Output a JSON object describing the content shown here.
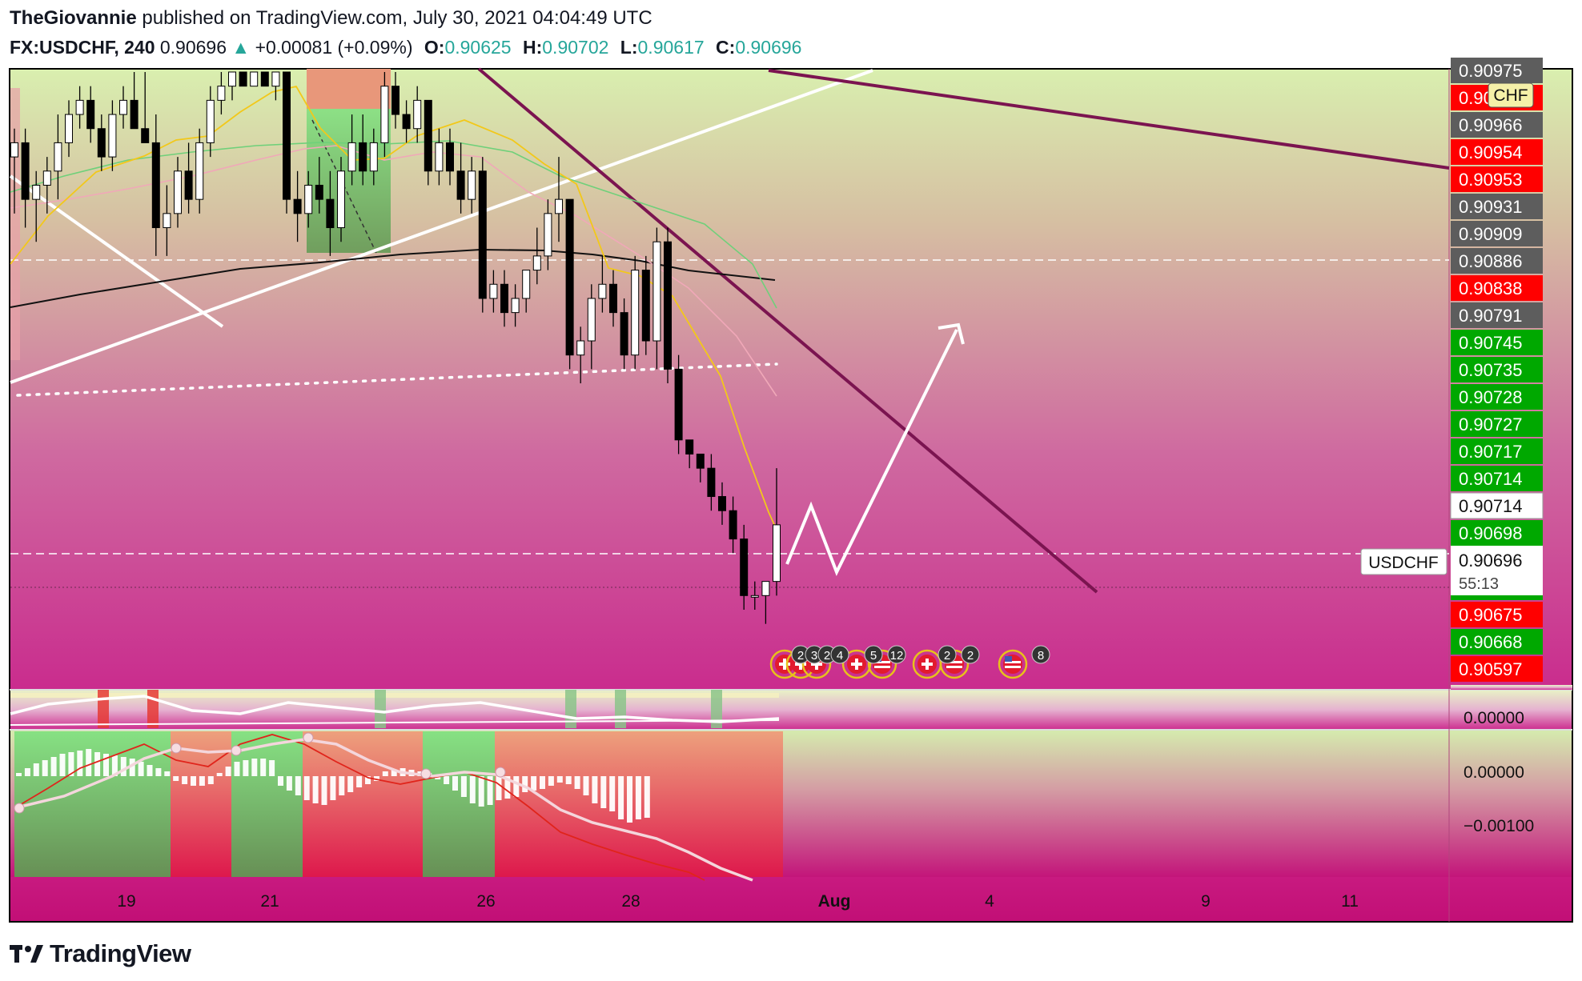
{
  "header": {
    "author": "TheGiovannie",
    "published_text": "published on TradingView.com, July 30, 2021 04:04:49 UTC",
    "symbol": "FX:USDCHF, 240",
    "last": "0.90696",
    "change": "+0.00081 (+0.09%)",
    "ohlc": [
      {
        "label": "O:",
        "value": "0.90625"
      },
      {
        "label": "H:",
        "value": "0.90702"
      },
      {
        "label": "L:",
        "value": "0.90617"
      },
      {
        "label": "C:",
        "value": "0.90696"
      }
    ]
  },
  "footer": {
    "brand": "TradingView"
  },
  "colors": {
    "bull_candle": "#ffffff",
    "bear_candle": "#000000",
    "trendline": "#7b1450",
    "price_green": "#00a800",
    "price_red": "#ff0000",
    "price_gray": "#5d5d5d"
  },
  "chart_data": {
    "type": "candlestick",
    "symbol": "USDCHF",
    "timeframe": "240",
    "ylim": [
      0.90593,
      0.9098
    ],
    "x_ticks": [
      "19",
      "21",
      "26",
      "28",
      "Aug",
      "4",
      "9",
      "11"
    ],
    "y_price_labels": [
      {
        "value": "0.90975",
        "color": "gray"
      },
      {
        "value": "0.90970",
        "color": "red"
      },
      {
        "value": "0.90966",
        "color": "gray"
      },
      {
        "value": "0.90954",
        "color": "red"
      },
      {
        "value": "0.90953",
        "color": "red"
      },
      {
        "value": "0.90931",
        "color": "gray"
      },
      {
        "value": "0.90909",
        "color": "gray"
      },
      {
        "value": "0.90886",
        "color": "gray"
      },
      {
        "value": "0.90838",
        "color": "red"
      },
      {
        "value": "0.90791",
        "color": "gray"
      },
      {
        "value": "0.90745",
        "color": "green"
      },
      {
        "value": "0.90735",
        "color": "green"
      },
      {
        "value": "0.90728",
        "color": "green"
      },
      {
        "value": "0.90727",
        "color": "green"
      },
      {
        "value": "0.90717",
        "color": "green"
      },
      {
        "value": "0.90714",
        "color": "green"
      },
      {
        "value": "0.90714",
        "color": "white"
      },
      {
        "value": "0.90698",
        "color": "green"
      },
      {
        "value": "0.90696",
        "color": "white"
      },
      {
        "value": "0.90695",
        "color": "green"
      },
      {
        "value": "0.90675",
        "color": "red"
      },
      {
        "value": "0.90668",
        "color": "green"
      },
      {
        "value": "0.90597",
        "color": "red"
      }
    ],
    "last_price_label": "USDCHF",
    "last_price": "0.90696",
    "countdown": "55:13",
    "currency_badge": "CHF",
    "candles": [
      [
        0.9092,
        0.9094,
        0.9088,
        0.9093
      ],
      [
        0.9093,
        0.9094,
        0.9087,
        0.9089
      ],
      [
        0.9089,
        0.9091,
        0.9086,
        0.909
      ],
      [
        0.909,
        0.9092,
        0.9088,
        0.9091
      ],
      [
        0.9091,
        0.9095,
        0.9089,
        0.9093
      ],
      [
        0.9093,
        0.9096,
        0.9092,
        0.9095
      ],
      [
        0.9095,
        0.9097,
        0.9094,
        0.9096
      ],
      [
        0.9096,
        0.9097,
        0.9093,
        0.9094
      ],
      [
        0.9094,
        0.9095,
        0.9091,
        0.9092
      ],
      [
        0.9092,
        0.9096,
        0.9091,
        0.9095
      ],
      [
        0.9095,
        0.9097,
        0.9094,
        0.9096
      ],
      [
        0.9096,
        0.9098,
        0.9094,
        0.9094
      ],
      [
        0.9094,
        0.9098,
        0.9093,
        0.9093
      ],
      [
        0.9093,
        0.9095,
        0.9085,
        0.9087
      ],
      [
        0.9087,
        0.909,
        0.9085,
        0.9088
      ],
      [
        0.9088,
        0.9092,
        0.9087,
        0.9091
      ],
      [
        0.9091,
        0.9093,
        0.9088,
        0.9089
      ],
      [
        0.9089,
        0.9094,
        0.9088,
        0.9093
      ],
      [
        0.9093,
        0.9097,
        0.9092,
        0.9096
      ],
      [
        0.9096,
        0.9098,
        0.9095,
        0.9097
      ],
      [
        0.9097,
        0.9098,
        0.9096,
        0.9098
      ],
      [
        0.9098,
        0.9098,
        0.9097,
        0.9097
      ],
      [
        0.9097,
        0.9098,
        0.9097,
        0.9098
      ],
      [
        0.9098,
        0.9098,
        0.9097,
        0.9097
      ],
      [
        0.9097,
        0.9098,
        0.9096,
        0.9098
      ],
      [
        0.9098,
        0.9098,
        0.9088,
        0.9089
      ],
      [
        0.9089,
        0.9091,
        0.9086,
        0.9088
      ],
      [
        0.9088,
        0.9091,
        0.9087,
        0.909
      ],
      [
        0.909,
        0.9092,
        0.9088,
        0.9089
      ],
      [
        0.9089,
        0.9091,
        0.9085,
        0.9087
      ],
      [
        0.9087,
        0.9092,
        0.9086,
        0.9091
      ],
      [
        0.9091,
        0.9095,
        0.909,
        0.9093
      ],
      [
        0.9093,
        0.9095,
        0.909,
        0.9091
      ],
      [
        0.9091,
        0.9094,
        0.909,
        0.9093
      ],
      [
        0.9093,
        0.9098,
        0.9092,
        0.9097
      ],
      [
        0.9097,
        0.9098,
        0.9094,
        0.9095
      ],
      [
        0.9095,
        0.9096,
        0.9093,
        0.9094
      ],
      [
        0.9094,
        0.9097,
        0.9093,
        0.9096
      ],
      [
        0.9096,
        0.9096,
        0.909,
        0.9091
      ],
      [
        0.9091,
        0.9094,
        0.909,
        0.9093
      ],
      [
        0.9093,
        0.9094,
        0.909,
        0.9091
      ],
      [
        0.9091,
        0.9093,
        0.9088,
        0.9089
      ],
      [
        0.9089,
        0.9092,
        0.9088,
        0.9091
      ],
      [
        0.9091,
        0.9092,
        0.9081,
        0.9082
      ],
      [
        0.9082,
        0.9084,
        0.9081,
        0.9083
      ],
      [
        0.9083,
        0.9084,
        0.908,
        0.9081
      ],
      [
        0.9081,
        0.9083,
        0.908,
        0.9082
      ],
      [
        0.9082,
        0.9084,
        0.9081,
        0.9084
      ],
      [
        0.9084,
        0.9087,
        0.9083,
        0.9085
      ],
      [
        0.9085,
        0.9089,
        0.9084,
        0.9088
      ],
      [
        0.9088,
        0.9092,
        0.9086,
        0.9089
      ],
      [
        0.9089,
        0.9089,
        0.9077,
        0.9078
      ],
      [
        0.9078,
        0.908,
        0.9076,
        0.9079
      ],
      [
        0.9079,
        0.9083,
        0.9077,
        0.9082
      ],
      [
        0.9082,
        0.9085,
        0.9081,
        0.9083
      ],
      [
        0.9083,
        0.9084,
        0.908,
        0.9081
      ],
      [
        0.9081,
        0.9082,
        0.9077,
        0.9078
      ],
      [
        0.9078,
        0.9085,
        0.9077,
        0.9084
      ],
      [
        0.9084,
        0.9085,
        0.9078,
        0.9079
      ],
      [
        0.9079,
        0.9087,
        0.9077,
        0.9086
      ],
      [
        0.9086,
        0.9087,
        0.9076,
        0.9077
      ],
      [
        0.9077,
        0.9078,
        0.9071,
        0.9072
      ],
      [
        0.9072,
        0.9072,
        0.907,
        0.9071
      ],
      [
        0.9071,
        0.9071,
        0.9069,
        0.907
      ],
      [
        0.907,
        0.9071,
        0.9067,
        0.9068
      ],
      [
        0.9068,
        0.9069,
        0.9066,
        0.9067
      ],
      [
        0.9067,
        0.9068,
        0.9064,
        0.9065
      ],
      [
        0.9065,
        0.9066,
        0.906,
        0.9061
      ],
      [
        0.9061,
        0.9062,
        0.906,
        0.9061
      ],
      [
        0.9061,
        0.9062,
        0.9059,
        0.9062
      ],
      [
        0.9062,
        0.907,
        0.9061,
        0.9066
      ]
    ],
    "event_badges": [
      "2",
      "3",
      "2",
      "4",
      "5",
      "12",
      "2",
      "2",
      "8"
    ],
    "indicator_axis_labels": [
      "0.00000",
      "0.00000",
      "−0.00100"
    ]
  }
}
